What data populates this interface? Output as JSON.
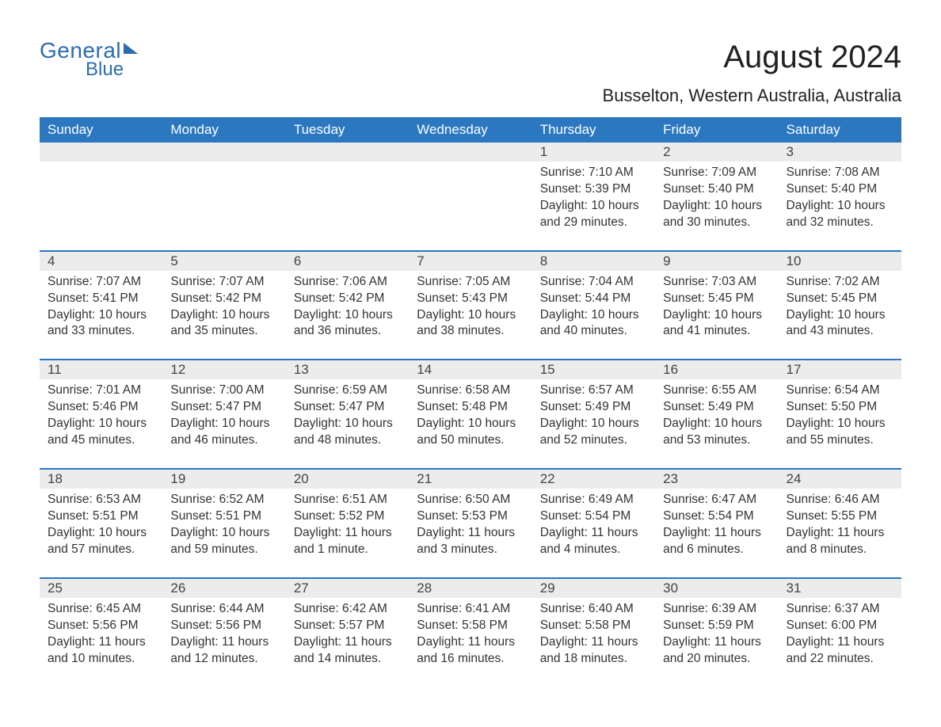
{
  "brand": {
    "line1": "General",
    "line2": "Blue"
  },
  "title": "August 2024",
  "subtitle": "Busselton, Western Australia, Australia",
  "colors": {
    "header_bg": "#2b77c0",
    "header_text": "#ffffff",
    "daynum_bg": "#ececec",
    "border": "#2b77c0",
    "text": "#333333",
    "brand": "#2b6cb0",
    "page_bg": "#ffffff"
  },
  "typography": {
    "title_fontsize": 40,
    "subtitle_fontsize": 22,
    "header_fontsize": 17,
    "body_fontsize": 15.5,
    "font_family": "Arial"
  },
  "layout": {
    "columns": 7,
    "rows": 5,
    "leading_blanks": 4
  },
  "day_headers": [
    "Sunday",
    "Monday",
    "Tuesday",
    "Wednesday",
    "Thursday",
    "Friday",
    "Saturday"
  ],
  "labels": {
    "sunrise": "Sunrise:",
    "sunset": "Sunset:",
    "daylight": "Daylight:"
  },
  "days": [
    {
      "n": 1,
      "sunrise": "7:10 AM",
      "sunset": "5:39 PM",
      "daylight": "10 hours and 29 minutes."
    },
    {
      "n": 2,
      "sunrise": "7:09 AM",
      "sunset": "5:40 PM",
      "daylight": "10 hours and 30 minutes."
    },
    {
      "n": 3,
      "sunrise": "7:08 AM",
      "sunset": "5:40 PM",
      "daylight": "10 hours and 32 minutes."
    },
    {
      "n": 4,
      "sunrise": "7:07 AM",
      "sunset": "5:41 PM",
      "daylight": "10 hours and 33 minutes."
    },
    {
      "n": 5,
      "sunrise": "7:07 AM",
      "sunset": "5:42 PM",
      "daylight": "10 hours and 35 minutes."
    },
    {
      "n": 6,
      "sunrise": "7:06 AM",
      "sunset": "5:42 PM",
      "daylight": "10 hours and 36 minutes."
    },
    {
      "n": 7,
      "sunrise": "7:05 AM",
      "sunset": "5:43 PM",
      "daylight": "10 hours and 38 minutes."
    },
    {
      "n": 8,
      "sunrise": "7:04 AM",
      "sunset": "5:44 PM",
      "daylight": "10 hours and 40 minutes."
    },
    {
      "n": 9,
      "sunrise": "7:03 AM",
      "sunset": "5:45 PM",
      "daylight": "10 hours and 41 minutes."
    },
    {
      "n": 10,
      "sunrise": "7:02 AM",
      "sunset": "5:45 PM",
      "daylight": "10 hours and 43 minutes."
    },
    {
      "n": 11,
      "sunrise": "7:01 AM",
      "sunset": "5:46 PM",
      "daylight": "10 hours and 45 minutes."
    },
    {
      "n": 12,
      "sunrise": "7:00 AM",
      "sunset": "5:47 PM",
      "daylight": "10 hours and 46 minutes."
    },
    {
      "n": 13,
      "sunrise": "6:59 AM",
      "sunset": "5:47 PM",
      "daylight": "10 hours and 48 minutes."
    },
    {
      "n": 14,
      "sunrise": "6:58 AM",
      "sunset": "5:48 PM",
      "daylight": "10 hours and 50 minutes."
    },
    {
      "n": 15,
      "sunrise": "6:57 AM",
      "sunset": "5:49 PM",
      "daylight": "10 hours and 52 minutes."
    },
    {
      "n": 16,
      "sunrise": "6:55 AM",
      "sunset": "5:49 PM",
      "daylight": "10 hours and 53 minutes."
    },
    {
      "n": 17,
      "sunrise": "6:54 AM",
      "sunset": "5:50 PM",
      "daylight": "10 hours and 55 minutes."
    },
    {
      "n": 18,
      "sunrise": "6:53 AM",
      "sunset": "5:51 PM",
      "daylight": "10 hours and 57 minutes."
    },
    {
      "n": 19,
      "sunrise": "6:52 AM",
      "sunset": "5:51 PM",
      "daylight": "10 hours and 59 minutes."
    },
    {
      "n": 20,
      "sunrise": "6:51 AM",
      "sunset": "5:52 PM",
      "daylight": "11 hours and 1 minute."
    },
    {
      "n": 21,
      "sunrise": "6:50 AM",
      "sunset": "5:53 PM",
      "daylight": "11 hours and 3 minutes."
    },
    {
      "n": 22,
      "sunrise": "6:49 AM",
      "sunset": "5:54 PM",
      "daylight": "11 hours and 4 minutes."
    },
    {
      "n": 23,
      "sunrise": "6:47 AM",
      "sunset": "5:54 PM",
      "daylight": "11 hours and 6 minutes."
    },
    {
      "n": 24,
      "sunrise": "6:46 AM",
      "sunset": "5:55 PM",
      "daylight": "11 hours and 8 minutes."
    },
    {
      "n": 25,
      "sunrise": "6:45 AM",
      "sunset": "5:56 PM",
      "daylight": "11 hours and 10 minutes."
    },
    {
      "n": 26,
      "sunrise": "6:44 AM",
      "sunset": "5:56 PM",
      "daylight": "11 hours and 12 minutes."
    },
    {
      "n": 27,
      "sunrise": "6:42 AM",
      "sunset": "5:57 PM",
      "daylight": "11 hours and 14 minutes."
    },
    {
      "n": 28,
      "sunrise": "6:41 AM",
      "sunset": "5:58 PM",
      "daylight": "11 hours and 16 minutes."
    },
    {
      "n": 29,
      "sunrise": "6:40 AM",
      "sunset": "5:58 PM",
      "daylight": "11 hours and 18 minutes."
    },
    {
      "n": 30,
      "sunrise": "6:39 AM",
      "sunset": "5:59 PM",
      "daylight": "11 hours and 20 minutes."
    },
    {
      "n": 31,
      "sunrise": "6:37 AM",
      "sunset": "6:00 PM",
      "daylight": "11 hours and 22 minutes."
    }
  ]
}
